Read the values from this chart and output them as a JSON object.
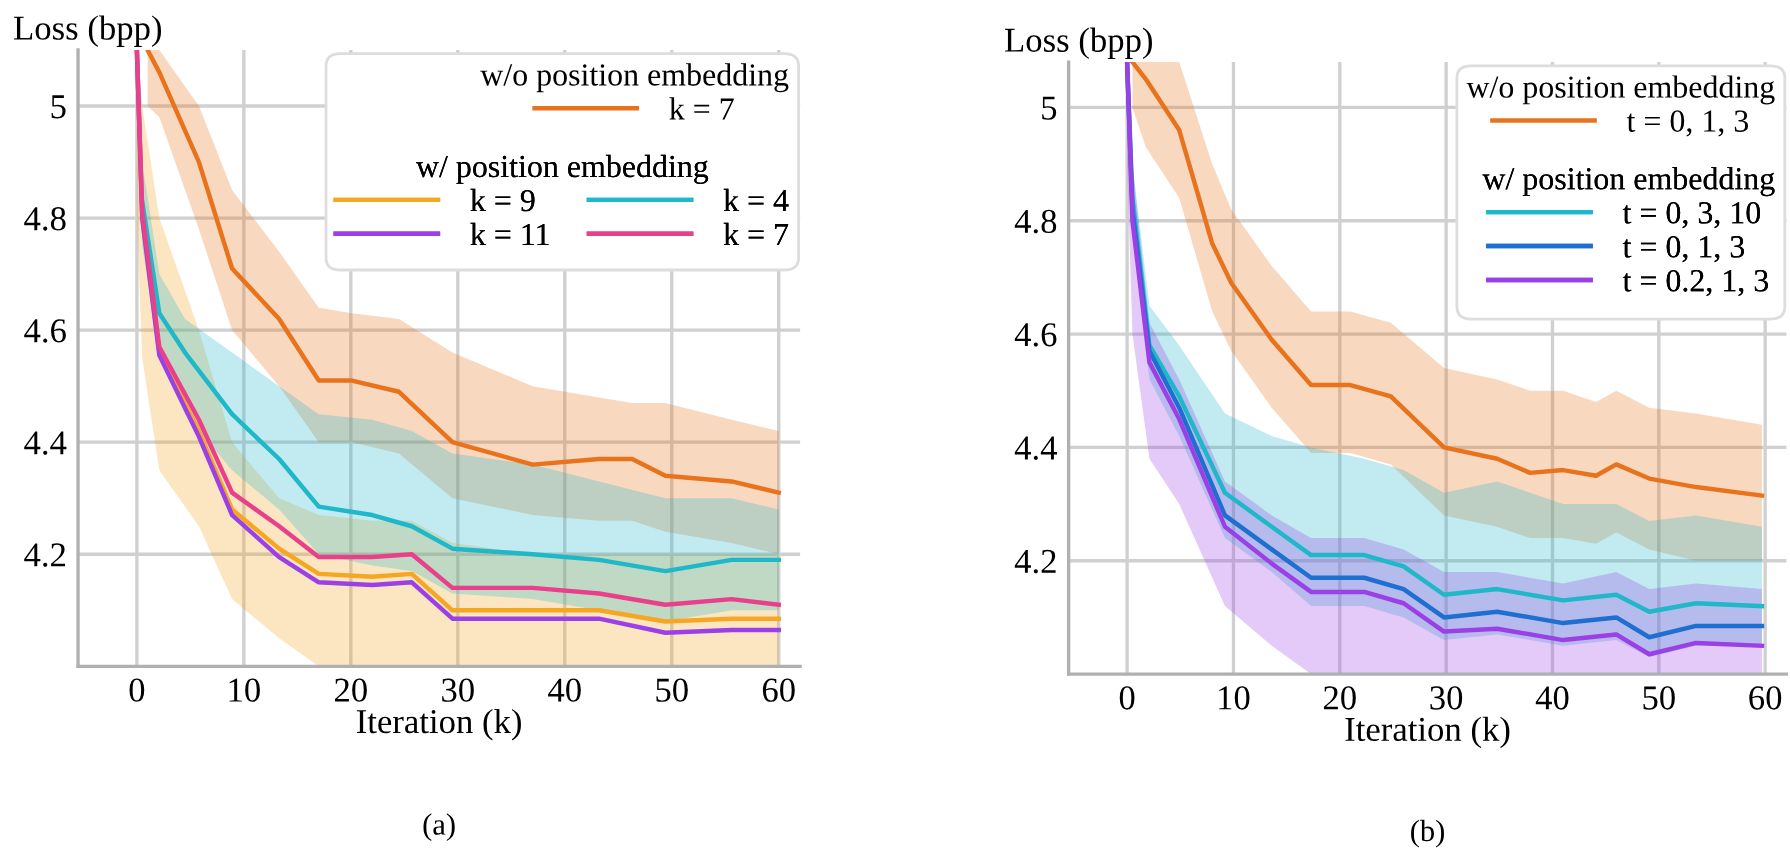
{
  "chart_data": [
    {
      "type": "line",
      "title": "(a)",
      "xlabel": "Iteration (k)",
      "ylabel": "Loss (bpp)",
      "xlim": [
        -5.5,
        62
      ],
      "ylim": [
        4.0,
        5.1
      ],
      "xticks": [
        0,
        10,
        20,
        30,
        40,
        50,
        60
      ],
      "yticks": [
        4.2,
        4.4,
        4.6,
        4.8,
        5
      ],
      "grid": true,
      "legend": "top right",
      "annotations": [
        "w/o position embedding",
        "w/ position embedding"
      ],
      "series": [
        {
          "name": "k = 7",
          "color": "#e8731c",
          "x": [
            1,
            2.1,
            5.8,
            8.9,
            13.3,
            17,
            20.1,
            24.5,
            29.5,
            37,
            43.2,
            46.3,
            49.4,
            55.6,
            60
          ],
          "values": [
            5.1,
            5.06,
            4.9,
            4.71,
            4.62,
            4.51,
            4.51,
            4.49,
            4.4,
            4.36,
            4.37,
            4.37,
            4.34,
            4.33,
            4.31
          ],
          "upper": [
            5.1,
            5.1,
            5.0,
            4.85,
            4.74,
            4.64,
            4.63,
            4.62,
            4.56,
            4.5,
            4.48,
            4.47,
            4.47,
            4.44,
            4.42
          ],
          "lower": [
            5.0,
            4.98,
            4.78,
            4.6,
            4.5,
            4.4,
            4.4,
            4.38,
            4.3,
            4.27,
            4.26,
            4.26,
            4.24,
            4.22,
            4.2
          ]
        },
        {
          "name": "k = 9",
          "color": "#f5a623",
          "x": [
            0,
            0.5,
            2.1,
            5.8,
            8.9,
            13.3,
            17,
            22,
            25.7,
            29.5,
            37,
            43.2,
            49.4,
            55.6,
            60
          ],
          "values": [
            5.1,
            4.8,
            4.56,
            4.42,
            4.28,
            4.21,
            4.165,
            4.16,
            4.165,
            4.1,
            4.1,
            4.1,
            4.08,
            4.085,
            4.085
          ],
          "upper": [
            5.1,
            5.0,
            4.8,
            4.6,
            4.4,
            4.3,
            4.27,
            4.26,
            4.26,
            4.22,
            4.2,
            4.2,
            4.2,
            4.2,
            4.2
          ],
          "lower": [
            4.8,
            4.55,
            4.35,
            4.25,
            4.12,
            4.05,
            4.0,
            4.0,
            4.0,
            4.0,
            4.0,
            4.0,
            4.0,
            4.0,
            4.0
          ]
        },
        {
          "name": "k = 11",
          "color": "#9b3fe6",
          "x": [
            0,
            0.5,
            2.1,
            5.8,
            8.9,
            13.3,
            17,
            22,
            25.7,
            29.5,
            37,
            43.2,
            49.4,
            55.6,
            60
          ],
          "values": [
            5.1,
            4.8,
            4.555,
            4.41,
            4.27,
            4.195,
            4.15,
            4.145,
            4.15,
            4.085,
            4.085,
            4.085,
            4.06,
            4.065,
            4.065
          ]
        },
        {
          "name": "k = 4",
          "color": "#1fb8c8",
          "x": [
            0,
            0.5,
            2.1,
            4.5,
            8.9,
            13.3,
            17,
            22,
            25.7,
            29.5,
            37,
            43.2,
            49.4,
            55.6,
            60
          ],
          "values": [
            null,
            4.83,
            4.63,
            4.56,
            4.45,
            4.37,
            4.285,
            4.27,
            4.25,
            4.21,
            4.2,
            4.19,
            4.17,
            4.19,
            4.19
          ],
          "upper": [
            5.1,
            4.9,
            4.7,
            4.62,
            4.56,
            4.5,
            4.45,
            4.44,
            4.42,
            4.38,
            4.36,
            4.33,
            4.3,
            4.3,
            4.28
          ],
          "lower": [
            5.0,
            4.75,
            4.55,
            4.45,
            4.35,
            4.28,
            4.2,
            4.18,
            4.17,
            4.13,
            4.12,
            4.1,
            4.08,
            4.1,
            4.1
          ]
        },
        {
          "name": "k = 7",
          "color": "#e8408a",
          "x": [
            0,
            0.5,
            2.1,
            5.8,
            8.9,
            13.3,
            17,
            22,
            25.7,
            29.5,
            37,
            43.2,
            49.4,
            55.6,
            60
          ],
          "values": [
            5.1,
            4.81,
            4.57,
            4.44,
            4.31,
            4.25,
            4.195,
            4.195,
            4.2,
            4.14,
            4.14,
            4.13,
            4.11,
            4.12,
            4.11
          ]
        }
      ]
    },
    {
      "type": "line",
      "title": "(b)",
      "xlabel": "Iteration (k)",
      "ylabel": "Loss (bpp)",
      "xlim": [
        -5.5,
        62
      ],
      "ylim": [
        4.0,
        5.08
      ],
      "xticks": [
        0,
        10,
        20,
        30,
        40,
        50,
        60
      ],
      "yticks": [
        4.2,
        4.4,
        4.6,
        4.8,
        5
      ],
      "grid": true,
      "legend": "top right",
      "annotations": [
        "w/o position embedding",
        "w/ position embedding"
      ],
      "series": [
        {
          "name": "t = 0, 1, 3",
          "color": "#e8731c",
          "x": [
            0.5,
            1.75,
            4.9,
            8.0,
            9.8,
            13.6,
            17.3,
            21,
            24.8,
            29.8,
            34.8,
            37.9,
            41,
            44.1,
            46,
            49.1,
            53.5,
            59.7
          ],
          "values": [
            5.08,
            5.05,
            4.96,
            4.76,
            4.69,
            4.59,
            4.51,
            4.51,
            4.49,
            4.4,
            4.38,
            4.355,
            4.36,
            4.35,
            4.37,
            4.345,
            4.33,
            4.315
          ],
          "upper": [
            5.08,
            5.08,
            5.08,
            4.9,
            4.82,
            4.72,
            4.64,
            4.64,
            4.62,
            4.54,
            4.52,
            4.5,
            4.5,
            4.48,
            4.5,
            4.47,
            4.46,
            4.44
          ],
          "lower": [
            5.0,
            4.93,
            4.84,
            4.64,
            4.57,
            4.47,
            4.39,
            4.39,
            4.37,
            4.28,
            4.26,
            4.24,
            4.24,
            4.23,
            4.25,
            4.22,
            4.2,
            4.2
          ]
        },
        {
          "name": "t = 0, 3, 10",
          "color": "#1fb8c8",
          "x": [
            0,
            0.5,
            2.1,
            4.9,
            9.2,
            13.6,
            17.3,
            22.3,
            26,
            29.8,
            34.8,
            41,
            46,
            49.1,
            53.5,
            59.7
          ],
          "values": [
            5.08,
            4.84,
            4.58,
            4.49,
            4.32,
            4.26,
            4.21,
            4.21,
            4.19,
            4.14,
            4.15,
            4.13,
            4.14,
            4.11,
            4.125,
            4.12
          ],
          "upper": [
            5.08,
            4.9,
            4.65,
            4.58,
            4.46,
            4.42,
            4.4,
            4.38,
            4.36,
            4.32,
            4.34,
            4.3,
            4.3,
            4.27,
            4.28,
            4.26
          ],
          "lower": [
            5.0,
            4.78,
            4.52,
            4.42,
            4.24,
            4.18,
            4.12,
            4.12,
            4.1,
            4.06,
            4.07,
            4.05,
            4.06,
            4.03,
            4.05,
            4.05
          ]
        },
        {
          "name": "t = 0, 1, 3",
          "color": "#1f6fd0",
          "x": [
            0,
            0.5,
            2.1,
            4.9,
            9.2,
            13.6,
            17.3,
            22.3,
            26,
            29.8,
            34.8,
            41,
            46,
            49.1,
            53.5,
            59.7
          ],
          "values": [
            5.08,
            4.82,
            4.57,
            4.47,
            4.28,
            4.22,
            4.17,
            4.17,
            4.15,
            4.1,
            4.11,
            4.09,
            4.1,
            4.065,
            4.085,
            4.085
          ]
        },
        {
          "name": "t = 0.2, 1, 3",
          "color": "#9b3fe6",
          "x": [
            0,
            0.5,
            2.1,
            4.9,
            9.2,
            13.6,
            17.3,
            22.3,
            26,
            29.8,
            34.8,
            41,
            46,
            49.1,
            53.5,
            59.7
          ],
          "values": [
            5.08,
            4.8,
            4.55,
            4.45,
            4.26,
            4.195,
            4.145,
            4.145,
            4.125,
            4.075,
            4.08,
            4.06,
            4.07,
            4.035,
            4.055,
            4.05
          ],
          "upper": [
            5.08,
            4.9,
            4.62,
            4.52,
            4.34,
            4.28,
            4.24,
            4.24,
            4.22,
            4.18,
            4.18,
            4.16,
            4.18,
            4.15,
            4.16,
            4.15
          ],
          "lower": [
            4.9,
            4.6,
            4.38,
            4.3,
            4.12,
            4.05,
            4.0,
            4.0,
            4.0,
            4.0,
            4.0,
            4.0,
            4.0,
            4.0,
            4.0,
            4.0
          ]
        }
      ]
    }
  ]
}
